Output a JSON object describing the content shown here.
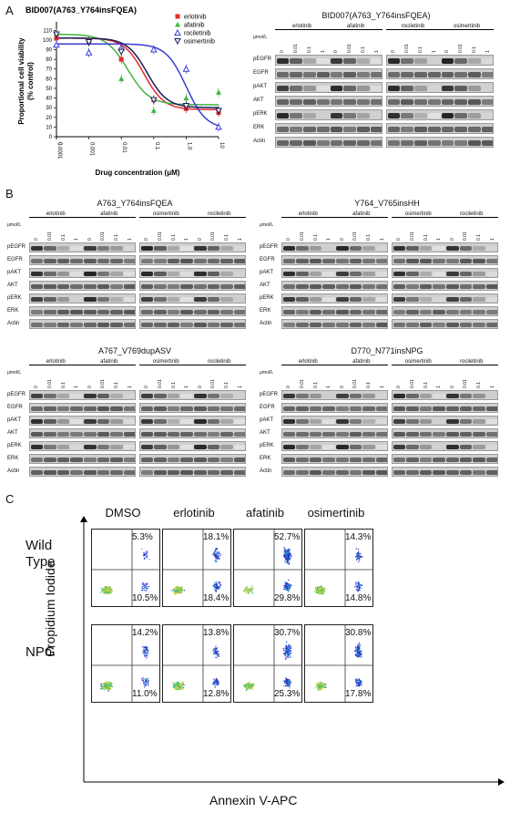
{
  "panelA": {
    "letter": "A",
    "chart_data": {
      "type": "line",
      "title": "BID007(A763_Y764insFQEA)",
      "xlabel": "Drug concentration (μM)",
      "ylabel": "Proportional cell viability\n(% control)",
      "x_ticks": [
        "0.0001",
        "0.001",
        "0.01",
        "0.1",
        "1.0",
        "10"
      ],
      "y_ticks": [
        "0",
        "10",
        "20",
        "30",
        "40",
        "50",
        "60",
        "70",
        "80",
        "90",
        "100",
        "110"
      ],
      "ylim": [
        0,
        115
      ],
      "x_scale": "log",
      "legend_placement": "top-right",
      "series": [
        {
          "name": "erlotinib",
          "color": "#e32b2b",
          "marker": "square",
          "x": [
            0.0001,
            0.001,
            0.01,
            0.1,
            1.0,
            10
          ],
          "y": [
            102,
            99,
            80,
            38,
            29,
            25
          ]
        },
        {
          "name": "afatinib",
          "color": "#3fb53f",
          "marker": "triangle-up",
          "x": [
            0.0001,
            0.001,
            0.01,
            0.1,
            1.0,
            10
          ],
          "y": [
            107,
            100,
            60,
            27,
            40,
            46
          ]
        },
        {
          "name": "rociletinib",
          "color": "#3b3bd6",
          "marker": "triangle-up-open",
          "x": [
            0.0001,
            0.001,
            0.01,
            0.1,
            1.0,
            10
          ],
          "y": [
            95,
            87,
            92,
            90,
            70,
            10
          ]
        },
        {
          "name": "osimertinib",
          "color": "#1a1a5a",
          "marker": "triangle-down-open",
          "x": [
            0.0001,
            0.001,
            0.01,
            0.1,
            1.0,
            10
          ],
          "y": [
            106,
            98,
            88,
            38,
            32,
            27
          ]
        }
      ]
    },
    "blot": {
      "title": "BID007(A763_Y764insFQEA)",
      "unit": "μmol/L",
      "groups": [
        "erlotinib",
        "afatinib",
        "rociletinib",
        "osimertinib"
      ],
      "doses": [
        "0",
        "0.01",
        "0.1",
        "1"
      ],
      "rows": [
        "pEGFR",
        "EGFR",
        "pAKT",
        "AKT",
        "pERK",
        "ERK",
        "Actin"
      ]
    }
  },
  "panelB": {
    "letter": "B",
    "blots": [
      {
        "title": "A763_Y764insFQEA",
        "unit": "μmol/L",
        "groups": [
          "erlotinib",
          "afatinib",
          "osimertinib",
          "rociletinib"
        ]
      },
      {
        "title": "Y764_V765insHH",
        "unit": "μmol/L",
        "groups": [
          "erlotinib",
          "afatinib",
          "osimertinib",
          "rociletinib"
        ]
      },
      {
        "title": "A767_V769dupASV",
        "unit": "μmol/L",
        "groups": [
          "erlotinib",
          "afatinib",
          "osimertinib",
          "rociletinib"
        ]
      },
      {
        "title": "D770_N771insNPG",
        "unit": "μmol/L",
        "groups": [
          "erlotinib",
          "afatinib",
          "osimertinib",
          "rociletinib"
        ]
      }
    ],
    "doses": [
      "0",
      "0.01",
      "0.1",
      "1"
    ],
    "rows": [
      "pEGFR",
      "EGFR",
      "pAKT",
      "AKT",
      "pERK",
      "ERK",
      "Actin"
    ]
  },
  "panelC": {
    "letter": "C",
    "columns": [
      "DMSO",
      "erlotinib",
      "afatinib",
      "osimertinib"
    ],
    "rows": [
      "Wild\nType",
      "NPG"
    ],
    "ylabel": "Propidium Iodide",
    "xlabel": "Annexin V-APC",
    "upper_right_pct": [
      [
        "5.3%",
        "18.1%",
        "52.7%",
        "14.3%"
      ],
      [
        "14.2%",
        "13.8%",
        "30.7%",
        "30.8%"
      ]
    ],
    "lower_right_pct": [
      [
        "10.5%",
        "18.4%",
        "29.8%",
        "14.8%"
      ],
      [
        "11.0%",
        "12.8%",
        "25.3%",
        "17.8%"
      ]
    ]
  }
}
